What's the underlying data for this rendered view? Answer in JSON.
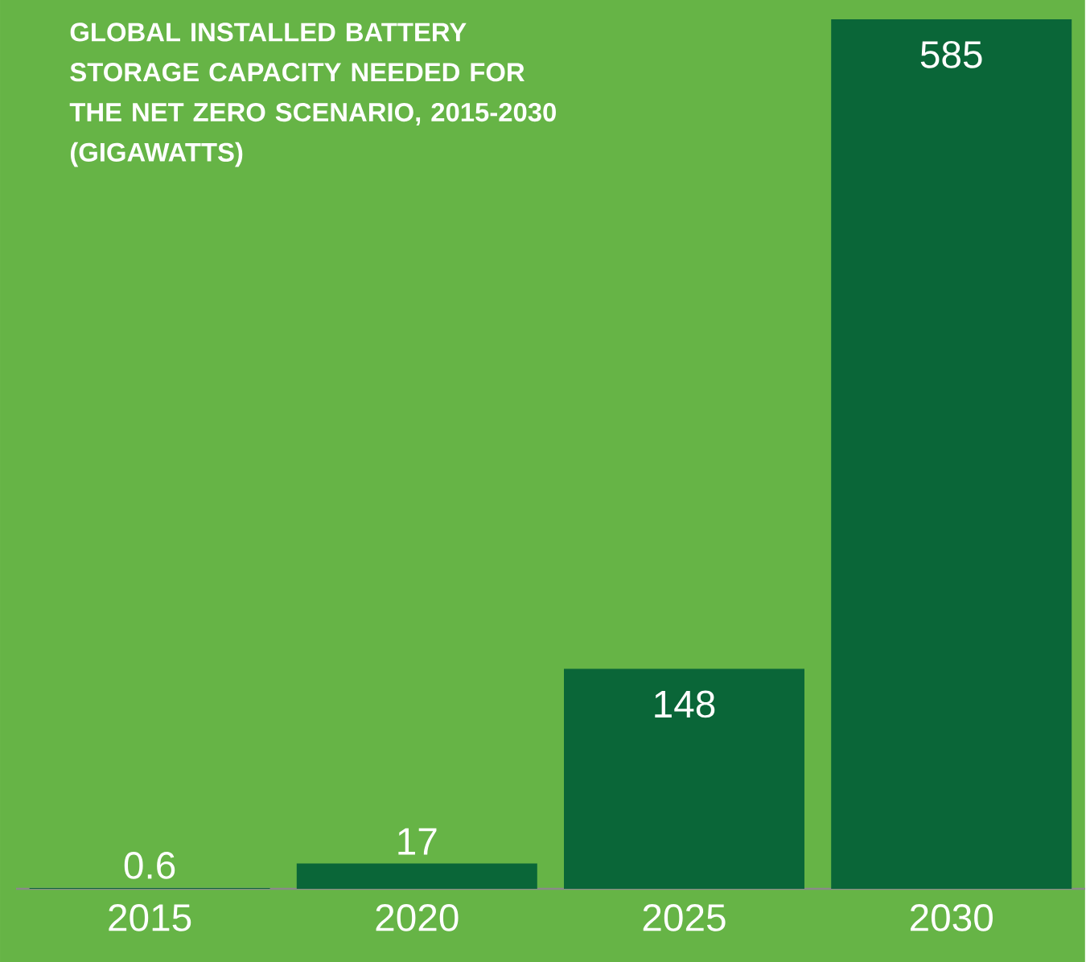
{
  "chart_data": {
    "type": "bar",
    "title": "GLOBAL INSTALLED BATTERY STORAGE CAPACITY NEEDED FOR THE NET ZERO SCENARIO, 2015-2030 (GIGAWATTS)",
    "categories": [
      "2015",
      "2020",
      "2025",
      "2030"
    ],
    "values": [
      0.6,
      17,
      148,
      585
    ],
    "color": "#0a6638",
    "data_labels": true
  }
}
